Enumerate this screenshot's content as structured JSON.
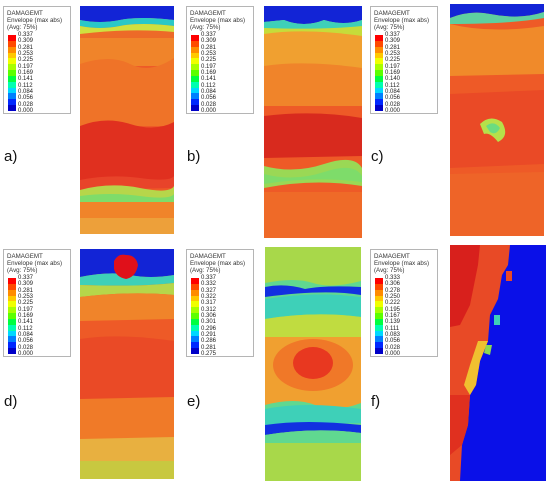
{
  "figure": {
    "panels": [
      {
        "label": "a)",
        "legend": {
          "title1": "DAMAGEMT",
          "title2": "Envelope (max abs)",
          "title3": "(Avg: 75%)",
          "ticks": [
            "0.337",
            "0.309",
            "0.281",
            "0.253",
            "0.225",
            "0.197",
            "0.169",
            "0.141",
            "0.112",
            "0.084",
            "0.056",
            "0.028",
            "0.000"
          ]
        },
        "colors": {
          "main": "#e8442a",
          "warm": "#ef6a22",
          "green": "#b6d64a",
          "blue": "#1224d6",
          "red": "#d8201c"
        }
      },
      {
        "label": "b)",
        "legend": {
          "title1": "DAMAGEMT",
          "title2": "Envelope (max abs)",
          "title3": "(Avg: 75%)",
          "ticks": [
            "0.337",
            "0.309",
            "0.281",
            "0.253",
            "0.225",
            "0.197",
            "0.169",
            "0.141",
            "0.112",
            "0.084",
            "0.056",
            "0.028",
            "0.000"
          ]
        },
        "colors": {
          "main": "#e8442a",
          "warm": "#ef7a20",
          "green": "#a6d85a",
          "blue": "#1224d6",
          "red": "#d8201c"
        }
      },
      {
        "label": "c)",
        "legend": {
          "title1": "DAMAGEMT",
          "title2": "Envelope (max abs)",
          "title3": "(Avg: 75%)",
          "ticks": [
            "0.337",
            "0.309",
            "0.281",
            "0.253",
            "0.225",
            "0.197",
            "0.169",
            "0.140",
            "0.112",
            "0.084",
            "0.056",
            "0.028",
            "0.000"
          ]
        },
        "colors": {
          "main": "#e8442a",
          "warm": "#ef7a20",
          "green": "#b6e04a",
          "blue": "#1224d6",
          "red": "#d8201c"
        }
      },
      {
        "label": "d)",
        "legend": {
          "title1": "DAMAGEMT",
          "title2": "Envelope (max abs)",
          "title3": "(Avg: 75%)",
          "ticks": [
            "0.337",
            "0.309",
            "0.281",
            "0.253",
            "0.225",
            "0.197",
            "0.169",
            "0.141",
            "0.112",
            "0.084",
            "0.056",
            "0.028",
            "0.000"
          ]
        },
        "colors": {
          "main": "#e8442a",
          "warm": "#ef7a20",
          "green": "#b6d64a",
          "blue": "#1224d6",
          "red": "#e0101a"
        }
      },
      {
        "label": "e)",
        "legend": {
          "title1": "DAMAGEMT",
          "title2": "Envelope (max abs)",
          "title3": "(Avg: 75%)",
          "ticks": [
            "0.337",
            "0.332",
            "0.327",
            "0.322",
            "0.317",
            "0.312",
            "0.306",
            "0.301",
            "0.296",
            "0.291",
            "0.286",
            "0.281",
            "0.275"
          ]
        },
        "colors": {
          "main": "#a8d84a",
          "warm": "#f08a20",
          "green": "#3ed0b8",
          "blue": "#1230e0",
          "red": "#e83820"
        }
      },
      {
        "label": "f)",
        "legend": {
          "title1": "DAMAGEMT",
          "title2": "Envelope (max abs)",
          "title3": "(Avg: 75%)",
          "ticks": [
            "0.333",
            "0.306",
            "0.278",
            "0.250",
            "0.222",
            "0.195",
            "0.167",
            "0.139",
            "0.111",
            "0.083",
            "0.056",
            "0.028",
            "0.000"
          ]
        },
        "colors": {
          "main": "#e8442a",
          "warm": "#f07a20",
          "green": "#b6d64a",
          "blue": "#0a10e8",
          "red": "#d8201c"
        }
      }
    ],
    "scale_colors": [
      "#ff0000",
      "#ff4a00",
      "#ff8c00",
      "#ffc800",
      "#f0ff00",
      "#a8ff00",
      "#5cff00",
      "#00ff40",
      "#00ffb0",
      "#00d8ff",
      "#0080ff",
      "#0028ff",
      "#0000c8"
    ]
  }
}
